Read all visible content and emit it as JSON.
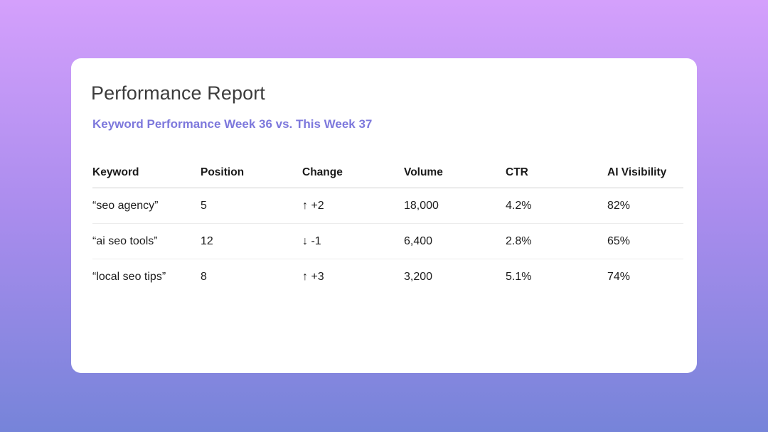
{
  "card": {
    "title": "Performance Report",
    "subtitle": "Keyword Performance Week 36 vs. This Week 37"
  },
  "table": {
    "headers": [
      "Keyword",
      "Position",
      "Change",
      "Volume",
      "CTR",
      "AI Visibility"
    ],
    "rows": [
      {
        "keyword": "“seo agency”",
        "position": "5",
        "change": "↑ +2",
        "volume": "18,000",
        "ctr": "4.2%",
        "ai_visibility": "82%"
      },
      {
        "keyword": "“ai seo tools”",
        "position": "12",
        "change": "↓ -1",
        "volume": "6,400",
        "ctr": "2.8%",
        "ai_visibility": "65%"
      },
      {
        "keyword": "“local seo tips”",
        "position": "8",
        "change": "↑ +3",
        "volume": "3,200",
        "ctr": "5.1%",
        "ai_visibility": "74%"
      }
    ]
  }
}
